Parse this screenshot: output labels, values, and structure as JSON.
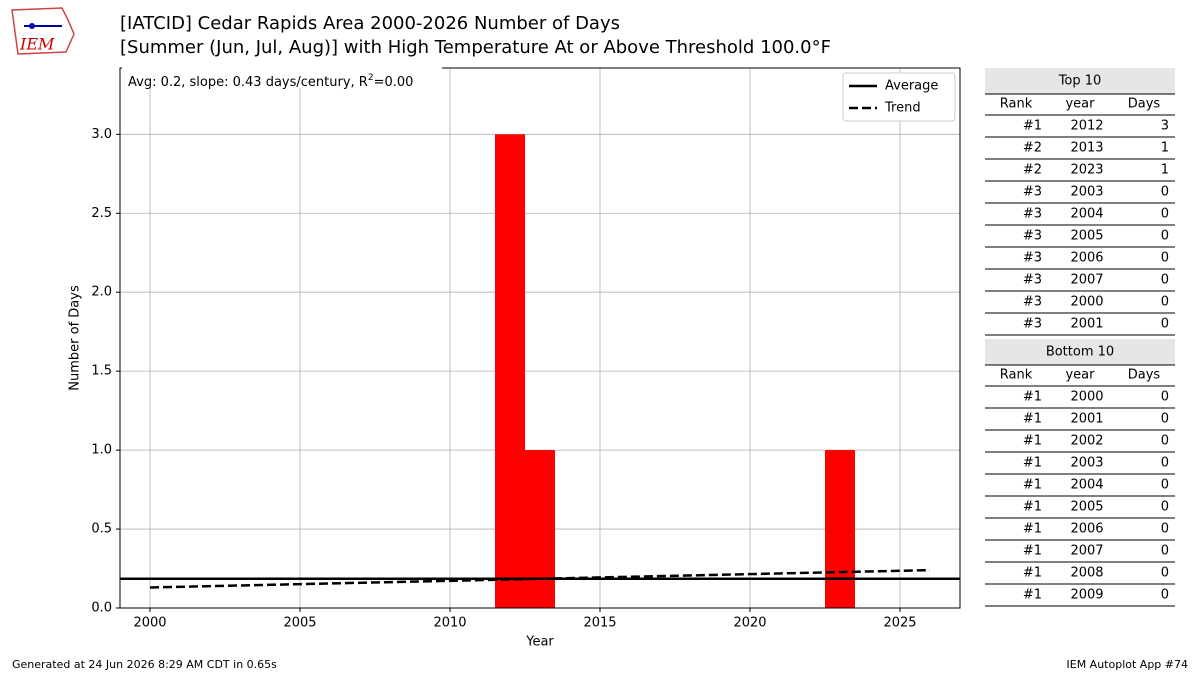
{
  "chart_data": {
    "type": "bar",
    "title": [
      "[IATCID] Cedar Rapids Area 2000-2026 Number of Days",
      "[Summer (Jun, Jul, Aug)] with High Temperature At or Above Threshold 100.0°F"
    ],
    "logo": "IEM",
    "annotation": [
      "Avg: 0.2, slope: 0.43 days/century, R",
      "2",
      "=0.00"
    ],
    "xlabel": "Year",
    "ylabel": "Number of Days",
    "x": [
      2000,
      2001,
      2002,
      2003,
      2004,
      2005,
      2006,
      2007,
      2008,
      2009,
      2010,
      2011,
      2012,
      2013,
      2014,
      2015,
      2016,
      2017,
      2018,
      2019,
      2020,
      2021,
      2022,
      2023,
      2024,
      2025,
      2026
    ],
    "values": [
      0,
      0,
      0,
      0,
      0,
      0,
      0,
      0,
      0,
      0,
      0,
      0,
      3,
      1,
      0,
      0,
      0,
      0,
      0,
      0,
      0,
      0,
      0,
      1,
      0,
      0,
      0
    ],
    "color": "#ff0000",
    "average": {
      "name": "Average",
      "value": 0.185
    },
    "trend": {
      "name": "Trend",
      "x": [
        2000,
        2026
      ],
      "values": [
        0.13,
        0.24
      ]
    },
    "xlim": [
      1999,
      2027
    ],
    "ylim": [
      0,
      3.42
    ],
    "xticks": [
      2000,
      2005,
      2010,
      2015,
      2020,
      2025
    ],
    "yticks": [
      {
        "value": 0,
        "label": "0.0"
      },
      {
        "value": 0.5,
        "label": "0.5"
      },
      {
        "value": 1,
        "label": "1.0"
      },
      {
        "value": 1.5,
        "label": "1.5"
      },
      {
        "value": 2,
        "label": "2.0"
      },
      {
        "value": 2.5,
        "label": "2.5"
      },
      {
        "value": 3,
        "label": "3.0"
      }
    ],
    "grid": true,
    "legend": "upper right"
  },
  "tables": [
    {
      "title": "Top 10",
      "columns": [
        "Rank",
        "year",
        "Days"
      ],
      "rows": [
        [
          "#1",
          2012,
          3
        ],
        [
          "#2",
          2013,
          1
        ],
        [
          "#2",
          2023,
          1
        ],
        [
          "#3",
          2003,
          0
        ],
        [
          "#3",
          2004,
          0
        ],
        [
          "#3",
          2005,
          0
        ],
        [
          "#3",
          2006,
          0
        ],
        [
          "#3",
          2007,
          0
        ],
        [
          "#3",
          2000,
          0
        ],
        [
          "#3",
          2001,
          0
        ]
      ]
    },
    {
      "title": "Bottom 10",
      "columns": [
        "Rank",
        "year",
        "Days"
      ],
      "rows": [
        [
          "#1",
          2000,
          0
        ],
        [
          "#1",
          2001,
          0
        ],
        [
          "#1",
          2002,
          0
        ],
        [
          "#1",
          2003,
          0
        ],
        [
          "#1",
          2004,
          0
        ],
        [
          "#1",
          2005,
          0
        ],
        [
          "#1",
          2006,
          0
        ],
        [
          "#1",
          2007,
          0
        ],
        [
          "#1",
          2008,
          0
        ],
        [
          "#1",
          2009,
          0
        ]
      ]
    }
  ],
  "footer": {
    "left": "Generated at 24 Jun 2026 8:29 AM CDT in 0.65s",
    "right": "IEM Autoplot App #74"
  }
}
